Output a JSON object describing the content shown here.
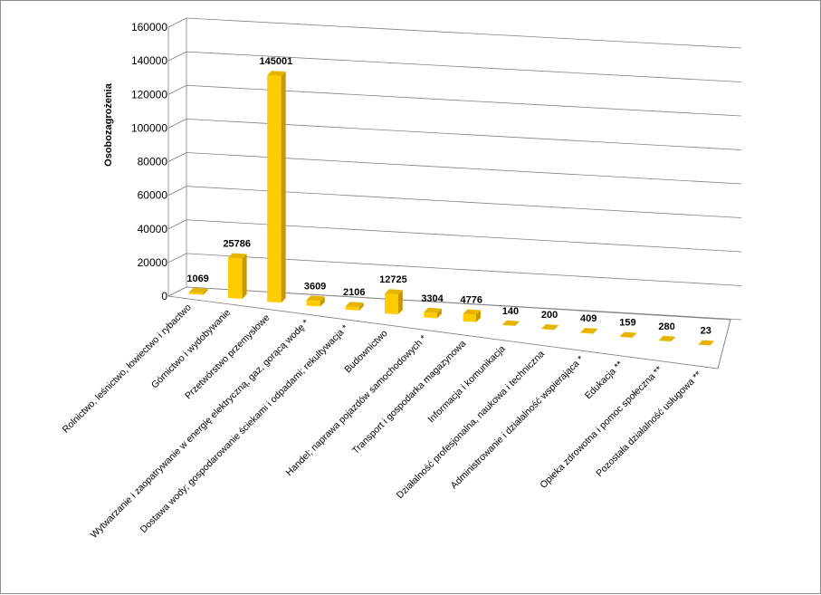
{
  "chart_data": {
    "type": "bar",
    "title": "",
    "xlabel": "",
    "ylabel": "Osobozagrożenia",
    "ylim": [
      0,
      160000
    ],
    "yticks": [
      "0",
      "20000",
      "40000",
      "60000",
      "80000",
      "100000",
      "120000",
      "140000",
      "160000"
    ],
    "grid": true,
    "legend": "none",
    "bar_color": "#FFCC00",
    "categories": [
      "Rolnictwo, leśnictwo, łowiectwo i rybactwo",
      "Górnictwo i wydobywanie",
      "Przetwórstwo przemysłowe",
      "Wytwarzanie i zaopatrywanie w energię elektryczną, gaz, gorącą wodę *",
      "Dostawa wody; gospodarowanie ściekami i odpadami; rekultywacja *",
      "Budownictwo",
      "Handel; naprawa pojazdów samochodowych *",
      "Transport i gospodarka magazynowa",
      "Informacja i komunikacja",
      "Działalność profesjonalna, naukowa i techniczna",
      "Administrowanie i działalność wspierająca *",
      "Edukacja **",
      "Opieka zdrowotna i pomoc społeczna **",
      "Pozostała działalność usługowa **"
    ],
    "values": [
      1069,
      25786,
      145001,
      3609,
      2106,
      12725,
      3304,
      4776,
      140,
      200,
      409,
      159,
      280,
      23
    ],
    "value_labels": [
      "1069",
      "25786",
      "145001",
      "3609",
      "2106",
      "12725",
      "3304",
      "4776",
      "140",
      "200",
      "409",
      "159",
      "280",
      "23"
    ]
  }
}
